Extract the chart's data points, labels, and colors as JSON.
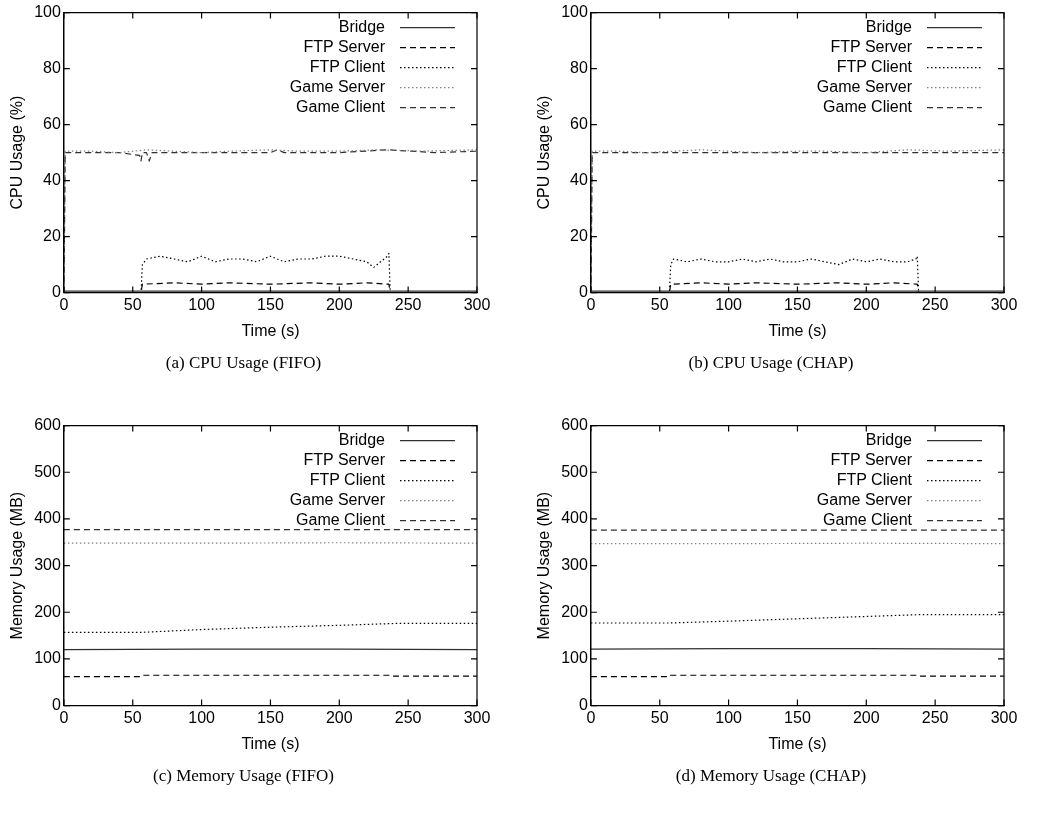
{
  "chart_data": [
    {
      "type": "line",
      "xlabel": "Time (s)",
      "ylabel": "CPU Usage (%)",
      "annotations": [
        "(a) CPU Usage (FIFO)"
      ],
      "xlim": [
        0,
        300
      ],
      "ylim": [
        0,
        100
      ],
      "xticks": [
        0,
        50,
        100,
        150,
        200,
        250,
        300
      ],
      "yticks": [
        0,
        20,
        40,
        60,
        80,
        100
      ],
      "legend": "top right",
      "marker": "none",
      "series": [
        {
          "name": "Bridge",
          "color": "#303030",
          "line_style": "solid",
          "x": [
            0,
            50,
            100,
            150,
            200,
            250,
            300
          ],
          "values": [
            0.5,
            0.5,
            0.5,
            0.5,
            0.5,
            0.5,
            0.5
          ]
        },
        {
          "name": "FTP Server",
          "color": "#000000",
          "line_style": "dashed",
          "x": [
            0,
            56,
            57,
            80,
            100,
            120,
            150,
            180,
            200,
            220,
            236,
            237,
            300
          ],
          "values": [
            0,
            0,
            3,
            3.5,
            3,
            3.5,
            3,
            3.5,
            3,
            3.5,
            3,
            0,
            0
          ]
        },
        {
          "name": "FTP Client",
          "color": "#000000",
          "line_style": "dotted",
          "x": [
            0,
            56,
            57,
            60,
            70,
            80,
            90,
            100,
            110,
            120,
            130,
            140,
            150,
            160,
            170,
            180,
            190,
            200,
            210,
            220,
            225,
            230,
            235,
            236,
            237,
            300
          ],
          "values": [
            0,
            0,
            10,
            12,
            13,
            12,
            11,
            13,
            11,
            12,
            12,
            11,
            13,
            11,
            12,
            12,
            13,
            13,
            12,
            11,
            9,
            11,
            13,
            14,
            0,
            0
          ]
        },
        {
          "name": "Game Server",
          "color": "#808080",
          "line_style": "dotted",
          "x": [
            0,
            1,
            20,
            40,
            60,
            80,
            100,
            120,
            150,
            170,
            200,
            230,
            260,
            300
          ],
          "values": [
            0,
            50.5,
            50.5,
            50,
            51,
            50.5,
            50,
            50.5,
            51,
            50.5,
            50.5,
            51,
            50.5,
            51
          ]
        },
        {
          "name": "Game Client",
          "color": "#303030",
          "line_style": "dashed",
          "x": [
            0,
            1,
            20,
            40,
            55,
            56,
            57,
            60,
            62,
            64,
            100,
            150,
            155,
            160,
            200,
            235,
            270,
            300
          ],
          "values": [
            0,
            50,
            50,
            50,
            49,
            47,
            50,
            50,
            47,
            50,
            50,
            50,
            51,
            50,
            50,
            51,
            50,
            50.5
          ]
        }
      ]
    },
    {
      "type": "line",
      "xlabel": "Time (s)",
      "ylabel": "CPU Usage (%)",
      "annotations": [
        "(b) CPU Usage (CHAP)"
      ],
      "xlim": [
        0,
        300
      ],
      "ylim": [
        0,
        100
      ],
      "xticks": [
        0,
        50,
        100,
        150,
        200,
        250,
        300
      ],
      "yticks": [
        0,
        20,
        40,
        60,
        80,
        100
      ],
      "legend": "top right",
      "marker": "none",
      "series": [
        {
          "name": "Bridge",
          "color": "#303030",
          "line_style": "solid",
          "x": [
            0,
            50,
            100,
            150,
            200,
            250,
            300
          ],
          "values": [
            0.5,
            0.5,
            0.5,
            0.5,
            0.5,
            0.5,
            0.5
          ]
        },
        {
          "name": "FTP Server",
          "color": "#000000",
          "line_style": "dashed",
          "x": [
            0,
            57,
            58,
            80,
            100,
            120,
            150,
            180,
            200,
            220,
            237,
            238,
            300
          ],
          "values": [
            0,
            0,
            3,
            3.5,
            3,
            3.5,
            3,
            3.5,
            3,
            3.5,
            3,
            0,
            0
          ]
        },
        {
          "name": "FTP Client",
          "color": "#000000",
          "line_style": "dotted",
          "x": [
            0,
            57,
            58,
            60,
            70,
            80,
            90,
            100,
            110,
            120,
            130,
            140,
            150,
            160,
            170,
            180,
            190,
            200,
            210,
            220,
            230,
            236,
            237,
            238,
            300
          ],
          "values": [
            0,
            0,
            10,
            12,
            11,
            12,
            11,
            11,
            12,
            11,
            12,
            11,
            11,
            12,
            11,
            10,
            12,
            11,
            12,
            11,
            11,
            12,
            13,
            0,
            0
          ]
        },
        {
          "name": "Game Server",
          "color": "#808080",
          "line_style": "dotted",
          "x": [
            0,
            1,
            20,
            40,
            60,
            80,
            100,
            120,
            150,
            170,
            200,
            230,
            260,
            300
          ],
          "values": [
            0,
            50.5,
            50.5,
            50,
            50.5,
            51,
            50.5,
            50,
            50.5,
            50.5,
            50,
            51,
            50.5,
            51
          ]
        },
        {
          "name": "Game Client",
          "color": "#303030",
          "line_style": "dashed",
          "x": [
            0,
            1,
            20,
            40,
            60,
            80,
            100,
            120,
            150,
            180,
            200,
            235,
            260,
            300
          ],
          "values": [
            0,
            50,
            50,
            50,
            50,
            50,
            50,
            50,
            50,
            50,
            50,
            50,
            50,
            50
          ]
        }
      ]
    },
    {
      "type": "line",
      "xlabel": "Time (s)",
      "ylabel": "Memory Usage (MB)",
      "annotations": [
        "(c) Memory Usage (FIFO)"
      ],
      "xlim": [
        0,
        300
      ],
      "ylim": [
        0,
        600
      ],
      "xticks": [
        0,
        50,
        100,
        150,
        200,
        250,
        300
      ],
      "yticks": [
        0,
        100,
        200,
        300,
        400,
        500,
        600
      ],
      "legend": "top right",
      "marker": "none",
      "series": [
        {
          "name": "Bridge",
          "color": "#303030",
          "line_style": "solid",
          "x": [
            0,
            100,
            200,
            300
          ],
          "values": [
            120,
            121,
            121,
            120
          ]
        },
        {
          "name": "FTP Server",
          "color": "#000000",
          "line_style": "dashed",
          "x": [
            0,
            56,
            57,
            237,
            238,
            300
          ],
          "values": [
            62,
            62,
            65,
            65,
            63,
            63
          ]
        },
        {
          "name": "FTP Client",
          "color": "#000000",
          "line_style": "dotted",
          "x": [
            0,
            57,
            100,
            150,
            200,
            240,
            300
          ],
          "values": [
            157,
            157,
            163,
            168,
            172,
            176,
            176
          ]
        },
        {
          "name": "Game Server",
          "color": "#808080",
          "line_style": "dotted",
          "x": [
            0,
            100,
            200,
            300
          ],
          "values": [
            348,
            348,
            349,
            348
          ]
        },
        {
          "name": "Game Client",
          "color": "#303030",
          "line_style": "dashed",
          "x": [
            0,
            100,
            200,
            300
          ],
          "values": [
            377,
            377,
            377,
            377
          ]
        }
      ]
    },
    {
      "type": "line",
      "xlabel": "Time (s)",
      "ylabel": "Memory Usage (MB)",
      "annotations": [
        "(d) Memory Usage (CHAP)"
      ],
      "xlim": [
        0,
        300
      ],
      "ylim": [
        0,
        600
      ],
      "xticks": [
        0,
        50,
        100,
        150,
        200,
        250,
        300
      ],
      "yticks": [
        0,
        100,
        200,
        300,
        400,
        500,
        600
      ],
      "legend": "top right",
      "marker": "none",
      "series": [
        {
          "name": "Bridge",
          "color": "#303030",
          "line_style": "solid",
          "x": [
            0,
            100,
            200,
            300
          ],
          "values": [
            121,
            122,
            122,
            121
          ]
        },
        {
          "name": "FTP Server",
          "color": "#000000",
          "line_style": "dashed",
          "x": [
            0,
            57,
            58,
            237,
            238,
            300
          ],
          "values": [
            62,
            62,
            65,
            65,
            63,
            63
          ]
        },
        {
          "name": "FTP Client",
          "color": "#000000",
          "line_style": "dotted",
          "x": [
            0,
            57,
            100,
            150,
            200,
            240,
            300
          ],
          "values": [
            177,
            177,
            181,
            186,
            191,
            195,
            195
          ]
        },
        {
          "name": "Game Server",
          "color": "#808080",
          "line_style": "dotted",
          "x": [
            0,
            100,
            200,
            300
          ],
          "values": [
            347,
            347,
            348,
            347
          ]
        },
        {
          "name": "Game Client",
          "color": "#303030",
          "line_style": "dashed",
          "x": [
            0,
            100,
            200,
            300
          ],
          "values": [
            376,
            376,
            376,
            376
          ]
        }
      ]
    }
  ]
}
